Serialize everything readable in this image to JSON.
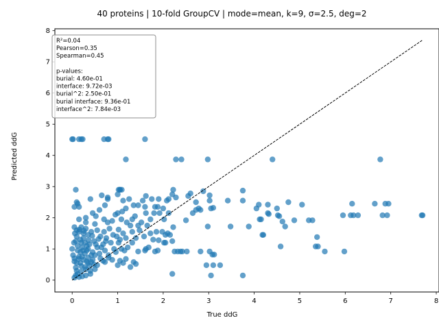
{
  "chart_data": {
    "type": "scatter",
    "title": "40 proteins | 10-fold GroupCV | mode=mean, k=9, σ=2.5, deg=2",
    "xlabel": "True ddG",
    "ylabel": "Predicted ddG",
    "xlim": [
      -0.38,
      8.06
    ],
    "ylim": [
      -0.38,
      8.06
    ],
    "xticks": [
      "0",
      "1",
      "2",
      "3",
      "4",
      "5",
      "6",
      "7",
      "8"
    ],
    "yticks": [
      "0",
      "1",
      "2",
      "3",
      "4",
      "5",
      "6",
      "7",
      "8"
    ],
    "grid": false,
    "marker_color": "#1f77b4",
    "diagonal": {
      "from": [
        0,
        0
      ],
      "to": [
        7.7,
        7.7
      ],
      "style": "dashed",
      "color": "#000000"
    },
    "stats_box": {
      "position": "top-left",
      "lines": [
        "R²=0.04",
        "Pearson=0.35",
        "Spearman=0.45",
        "",
        "p-values:",
        "burial: 4.60e-01",
        "interface: 9.72e-03",
        "burial^2: 2.50e-01",
        "burial interface: 9.36e-01",
        "interface^2: 7.84e-03"
      ]
    },
    "points": [
      [
        0.0,
        4.52
      ],
      [
        0.02,
        4.52
      ],
      [
        0.15,
        4.52
      ],
      [
        0.2,
        4.52
      ],
      [
        0.23,
        4.52
      ],
      [
        0.7,
        4.52
      ],
      [
        0.78,
        4.52
      ],
      [
        0.8,
        4.52
      ],
      [
        1.6,
        4.52
      ],
      [
        1.18,
        3.87
      ],
      [
        2.28,
        3.87
      ],
      [
        2.4,
        3.87
      ],
      [
        2.98,
        3.87
      ],
      [
        4.4,
        3.87
      ],
      [
        6.77,
        3.87
      ],
      [
        0.08,
        2.9
      ],
      [
        1.02,
        2.9
      ],
      [
        1.05,
        2.9
      ],
      [
        1.09,
        2.9
      ],
      [
        2.22,
        2.9
      ],
      [
        3.75,
        2.87
      ],
      [
        0.1,
        2.5
      ],
      [
        0.12,
        2.45
      ],
      [
        0.15,
        2.35
      ],
      [
        0.05,
        2.35
      ],
      [
        0.4,
        2.6
      ],
      [
        0.65,
        2.72
      ],
      [
        0.72,
        2.4
      ],
      [
        0.78,
        2.6
      ],
      [
        0.78,
        2.65
      ],
      [
        1.0,
        2.75
      ],
      [
        1.05,
        2.9
      ],
      [
        1.12,
        2.55
      ],
      [
        1.18,
        2.3
      ],
      [
        1.25,
        2.6
      ],
      [
        1.35,
        2.4
      ],
      [
        1.45,
        2.4
      ],
      [
        1.55,
        2.55
      ],
      [
        1.6,
        2.35
      ],
      [
        1.62,
        2.7
      ],
      [
        1.75,
        2.6
      ],
      [
        1.82,
        2.35
      ],
      [
        1.9,
        2.6
      ],
      [
        2.0,
        2.3
      ],
      [
        2.08,
        2.55
      ],
      [
        2.12,
        2.6
      ],
      [
        2.2,
        2.75
      ],
      [
        2.28,
        2.65
      ],
      [
        2.55,
        2.7
      ],
      [
        2.6,
        2.78
      ],
      [
        2.72,
        2.5
      ],
      [
        2.78,
        2.3
      ],
      [
        2.82,
        2.25
      ],
      [
        2.88,
        2.85
      ],
      [
        3.02,
        2.72
      ],
      [
        3.02,
        2.55
      ],
      [
        3.05,
        2.3
      ],
      [
        3.1,
        2.32
      ],
      [
        3.42,
        2.55
      ],
      [
        3.75,
        2.55
      ],
      [
        4.05,
        2.3
      ],
      [
        4.1,
        2.42
      ],
      [
        4.3,
        2.42
      ],
      [
        4.5,
        2.3
      ],
      [
        4.75,
        2.5
      ],
      [
        5.05,
        2.42
      ],
      [
        6.15,
        2.45
      ],
      [
        6.65,
        2.45
      ],
      [
        6.88,
        2.45
      ],
      [
        6.95,
        2.45
      ],
      [
        0.3,
        2.0
      ],
      [
        0.45,
        2.15
      ],
      [
        0.52,
        2.05
      ],
      [
        0.6,
        2.25
      ],
      [
        0.7,
        1.95
      ],
      [
        0.78,
        1.85
      ],
      [
        0.88,
        1.9
      ],
      [
        0.95,
        2.1
      ],
      [
        1.0,
        2.15
      ],
      [
        1.08,
        1.95
      ],
      [
        1.1,
        2.2
      ],
      [
        1.2,
        1.85
      ],
      [
        1.32,
        1.95
      ],
      [
        1.38,
        2.05
      ],
      [
        1.45,
        1.75
      ],
      [
        1.52,
        1.85
      ],
      [
        1.62,
        2.15
      ],
      [
        1.72,
        1.95
      ],
      [
        1.8,
        2.15
      ],
      [
        1.88,
        2.35
      ],
      [
        1.92,
        2.15
      ],
      [
        2.02,
        1.95
      ],
      [
        2.12,
        2.15
      ],
      [
        2.22,
        1.7
      ],
      [
        2.5,
        1.92
      ],
      [
        2.65,
        2.15
      ],
      [
        2.72,
        2.25
      ],
      [
        2.98,
        1.72
      ],
      [
        3.48,
        1.72
      ],
      [
        3.88,
        1.72
      ],
      [
        4.12,
        1.95
      ],
      [
        4.15,
        1.95
      ],
      [
        4.3,
        2.15
      ],
      [
        4.32,
        2.12
      ],
      [
        4.52,
        2.08
      ],
      [
        4.55,
        2.05
      ],
      [
        4.62,
        1.88
      ],
      [
        4.68,
        1.72
      ],
      [
        4.88,
        1.92
      ],
      [
        5.2,
        1.92
      ],
      [
        5.28,
        1.92
      ],
      [
        5.95,
        2.08
      ],
      [
        6.12,
        2.08
      ],
      [
        6.18,
        2.08
      ],
      [
        6.28,
        2.08
      ],
      [
        6.82,
        2.08
      ],
      [
        6.92,
        2.08
      ],
      [
        7.68,
        2.08
      ],
      [
        7.7,
        2.08
      ],
      [
        0.05,
        1.7
      ],
      [
        0.1,
        1.6
      ],
      [
        0.15,
        1.55
      ],
      [
        0.2,
        1.7
      ],
      [
        0.25,
        1.5
      ],
      [
        0.3,
        1.65
      ],
      [
        0.35,
        1.45
      ],
      [
        0.42,
        1.55
      ],
      [
        0.5,
        1.8
      ],
      [
        0.55,
        1.6
      ],
      [
        0.62,
        1.4
      ],
      [
        0.7,
        1.55
      ],
      [
        0.75,
        1.35
      ],
      [
        0.82,
        1.65
      ],
      [
        0.9,
        1.45
      ],
      [
        0.98,
        1.4
      ],
      [
        1.02,
        1.62
      ],
      [
        1.05,
        1.3
      ],
      [
        1.12,
        1.5
      ],
      [
        1.18,
        1.35
      ],
      [
        1.28,
        1.75
      ],
      [
        1.32,
        1.55
      ],
      [
        1.4,
        1.35
      ],
      [
        1.48,
        1.6
      ],
      [
        1.58,
        1.4
      ],
      [
        1.65,
        1.75
      ],
      [
        1.72,
        1.5
      ],
      [
        1.78,
        1.3
      ],
      [
        1.85,
        1.55
      ],
      [
        1.9,
        1.28
      ],
      [
        1.98,
        1.55
      ],
      [
        2.05,
        1.45
      ],
      [
        2.1,
        1.5
      ],
      [
        2.15,
        1.45
      ],
      [
        2.2,
        1.25
      ],
      [
        4.18,
        1.45
      ],
      [
        4.2,
        1.45
      ],
      [
        5.38,
        1.38
      ],
      [
        0.08,
        1.25
      ],
      [
        0.12,
        1.1
      ],
      [
        0.18,
        1.3
      ],
      [
        0.22,
        1.05
      ],
      [
        0.28,
        1.2
      ],
      [
        0.32,
        0.95
      ],
      [
        0.38,
        1.15
      ],
      [
        0.45,
        0.9
      ],
      [
        0.48,
        1.25
      ],
      [
        0.55,
        1.05
      ],
      [
        0.6,
        0.85
      ],
      [
        0.68,
        1.15
      ],
      [
        0.72,
        0.95
      ],
      [
        0.8,
        0.8
      ],
      [
        0.85,
        1.2
      ],
      [
        0.92,
        1.0
      ],
      [
        0.96,
        0.9
      ],
      [
        1.02,
        1.2
      ],
      [
        1.08,
        1.0
      ],
      [
        1.15,
        0.95
      ],
      [
        1.22,
        1.05
      ],
      [
        1.32,
        1.2
      ],
      [
        1.45,
        0.92
      ],
      [
        1.6,
        0.95
      ],
      [
        1.62,
        1.0
      ],
      [
        1.68,
        1.05
      ],
      [
        1.82,
        0.92
      ],
      [
        1.88,
        0.95
      ],
      [
        2.02,
        1.2
      ],
      [
        2.05,
        1.2
      ],
      [
        2.25,
        0.92
      ],
      [
        2.32,
        0.92
      ],
      [
        2.38,
        0.92
      ],
      [
        2.42,
        0.92
      ],
      [
        2.52,
        0.92
      ],
      [
        2.82,
        0.92
      ],
      [
        3.02,
        0.92
      ],
      [
        3.08,
        0.82
      ],
      [
        3.12,
        0.82
      ],
      [
        4.58,
        1.08
      ],
      [
        5.35,
        1.08
      ],
      [
        5.4,
        1.08
      ],
      [
        5.55,
        0.92
      ],
      [
        5.98,
        0.92
      ],
      [
        0.05,
        0.7
      ],
      [
        0.1,
        0.55
      ],
      [
        0.15,
        0.75
      ],
      [
        0.2,
        0.45
      ],
      [
        0.25,
        0.65
      ],
      [
        0.3,
        0.35
      ],
      [
        0.35,
        0.55
      ],
      [
        0.4,
        0.3
      ],
      [
        0.45,
        0.65
      ],
      [
        0.5,
        0.8
      ],
      [
        0.55,
        0.48
      ],
      [
        0.62,
        0.7
      ],
      [
        0.68,
        0.62
      ],
      [
        0.72,
        0.58
      ],
      [
        0.8,
        0.72
      ],
      [
        0.88,
        0.65
      ],
      [
        1.0,
        0.48
      ],
      [
        1.05,
        0.62
      ],
      [
        1.12,
        0.55
      ],
      [
        1.18,
        0.68
      ],
      [
        1.28,
        0.42
      ],
      [
        1.35,
        0.58
      ],
      [
        1.4,
        0.52
      ],
      [
        2.95,
        0.48
      ],
      [
        3.1,
        0.48
      ],
      [
        3.25,
        0.48
      ],
      [
        2.2,
        0.2
      ],
      [
        3.05,
        0.15
      ],
      [
        3.75,
        0.15
      ],
      [
        0.0,
        1.0
      ],
      [
        0.02,
        0.8
      ],
      [
        0.05,
        0.6
      ],
      [
        0.08,
        0.4
      ],
      [
        0.1,
        0.3
      ],
      [
        0.12,
        0.2
      ],
      [
        0.05,
        0.08
      ],
      [
        0.15,
        0.1
      ],
      [
        0.22,
        0.12
      ],
      [
        0.18,
        0.9
      ],
      [
        0.22,
        0.75
      ],
      [
        0.28,
        0.85
      ],
      [
        0.32,
        0.6
      ],
      [
        0.38,
        0.45
      ],
      [
        0.42,
        0.8
      ],
      [
        0.12,
        0.95
      ],
      [
        0.25,
        1.35
      ],
      [
        0.3,
        1.85
      ],
      [
        0.15,
        1.95
      ],
      [
        0.1,
        1.4
      ],
      [
        0.2,
        1.2
      ],
      [
        0.35,
        1.0
      ],
      [
        0.4,
        0.2
      ],
      [
        0.48,
        0.5
      ],
      [
        0.5,
        0.35
      ],
      [
        0.3,
        0.15
      ],
      [
        0.06,
        1.5
      ],
      [
        0.18,
        0.55
      ],
      [
        0.28,
        0.42
      ],
      [
        0.35,
        0.72
      ],
      [
        0.42,
        0.58
      ],
      [
        0.08,
        0.15
      ],
      [
        0.2,
        0.28
      ],
      [
        0.24,
        0.95
      ],
      [
        0.14,
        0.68
      ],
      [
        0.32,
        1.1
      ],
      [
        0.04,
        1.2
      ],
      [
        0.16,
        1.62
      ],
      [
        0.26,
        1.58
      ],
      [
        0.36,
        1.28
      ],
      [
        0.44,
        1.42
      ],
      [
        0.52,
        1.15
      ],
      [
        0.58,
        1.32
      ],
      [
        0.64,
        1.05
      ],
      [
        0.74,
        1.25
      ]
    ]
  }
}
